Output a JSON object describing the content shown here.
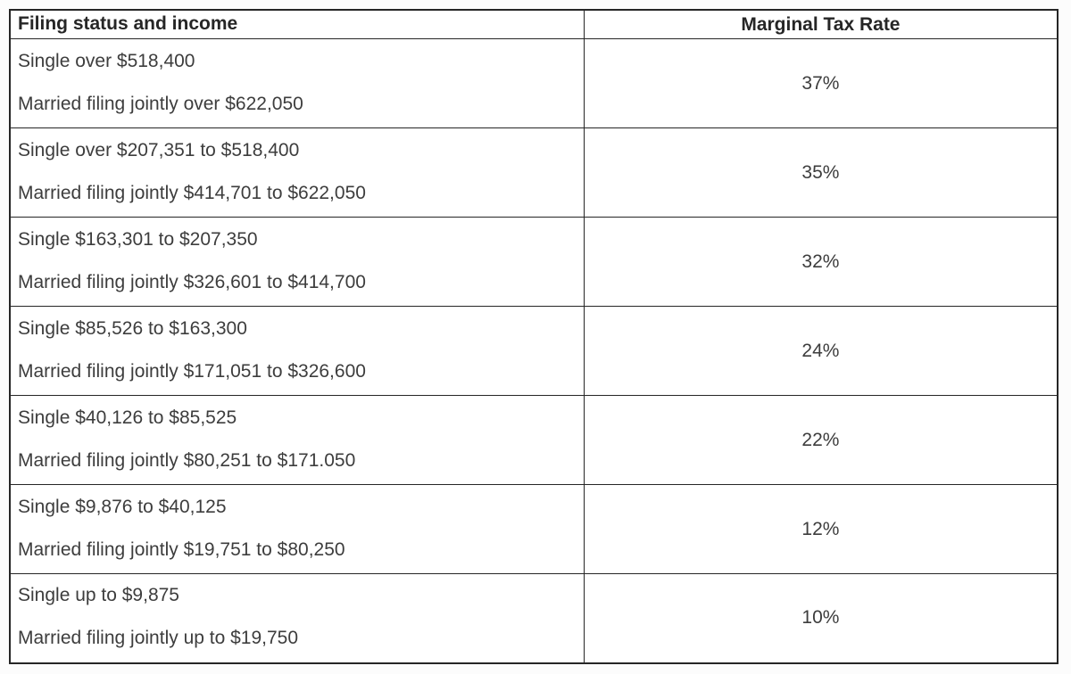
{
  "table": {
    "headers": {
      "income": "Filing status and income",
      "rate": "Marginal Tax Rate"
    },
    "rows": [
      {
        "single": "Single over $518,400",
        "married": "Married filing jointly over $622,050",
        "rate": "37%"
      },
      {
        "single": "Single over $207,351 to $518,400",
        "married": "Married filing jointly $414,701 to $622,050",
        "rate": "35%"
      },
      {
        "single": "Single $163,301 to $207,350",
        "married": "Married filing jointly $326,601 to $414,700",
        "rate": "32%"
      },
      {
        "single": "Single $85,526 to $163,300",
        "married": "Married filing jointly $171,051 to $326,600",
        "rate": "24%"
      },
      {
        "single": "Single $40,126 to $85,525",
        "married": "Married filing jointly $80,251 to $171.050",
        "rate": "22%"
      },
      {
        "single": "Single $9,876 to $40,125",
        "married": "Married filing jointly $19,751 to $80,250",
        "rate": "12%"
      },
      {
        "single": "Single up to $9,875",
        "married": "Married filing jointly up to $19,750",
        "rate": "10%"
      }
    ]
  }
}
